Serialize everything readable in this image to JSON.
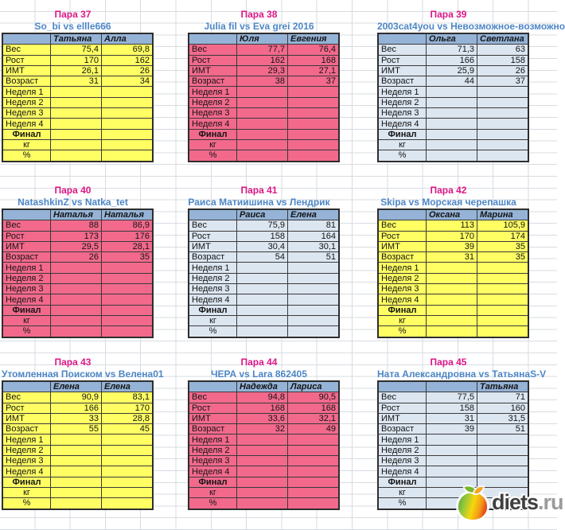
{
  "colors": {
    "yellow": "#FFFF63",
    "pink": "#F2698C",
    "blue": "#DCE6F1",
    "header": "#95B3D7",
    "title": "#DB1786",
    "subtitle": "#4C86C6",
    "gridline": "#D7DCE2"
  },
  "table_row_labels": [
    "Вес",
    "Рост",
    "ИМТ",
    "Возраст",
    "Неделя 1",
    "Неделя 2",
    "Неделя 3",
    "Неделя 4",
    "Финал",
    "кг",
    "%"
  ],
  "pairs": [
    {
      "title": "Пара 37",
      "matchup": "So_bi vs ellle666",
      "theme": "yellow",
      "players": [
        "Татьяна",
        "Алла"
      ],
      "stats": [
        [
          "75,4",
          "69,8"
        ],
        [
          "170",
          "162"
        ],
        [
          "26,1",
          "26"
        ],
        [
          "31",
          "34"
        ]
      ]
    },
    {
      "title": "Пара 38",
      "matchup": "Julia fil vs Eva grei 2016",
      "theme": "pink",
      "players": [
        "Юля",
        "Евгения"
      ],
      "stats": [
        [
          "77,7",
          "76,4"
        ],
        [
          "162",
          "168"
        ],
        [
          "29,3",
          "27,1"
        ],
        [
          "38",
          "37"
        ]
      ]
    },
    {
      "title": "Пара 39",
      "matchup": "2003cat4you vs Невозможное-возможно",
      "theme": "blue",
      "players": [
        "Ольга",
        "Светлана"
      ],
      "stats": [
        [
          "71,3",
          "63"
        ],
        [
          "166",
          "158"
        ],
        [
          "25,9",
          "26"
        ],
        [
          "44",
          "37"
        ]
      ]
    },
    {
      "title": "Пара 40",
      "matchup": "NatashkinZ vs Natka_tet",
      "theme": "pink",
      "players": [
        "Наталья",
        "Наталья"
      ],
      "stats": [
        [
          "88",
          "86,9"
        ],
        [
          "173",
          "176"
        ],
        [
          "29,5",
          "28,1"
        ],
        [
          "26",
          "35"
        ]
      ]
    },
    {
      "title": "Пара 41",
      "matchup": "Раиса Матиишина vs Лендрик",
      "theme": "blue",
      "players": [
        "Раиса",
        "Елена"
      ],
      "stats": [
        [
          "75,9",
          "81"
        ],
        [
          "158",
          "164"
        ],
        [
          "30,4",
          "30,1"
        ],
        [
          "54",
          "51"
        ]
      ]
    },
    {
      "title": "Пара 42",
      "matchup": "Skipa vs Морская черепашка",
      "theme": "yellow",
      "players": [
        "Оксана",
        "Марина"
      ],
      "stats": [
        [
          "113",
          "105,9"
        ],
        [
          "170",
          "174"
        ],
        [
          "39",
          "35"
        ],
        [
          "31",
          "35"
        ]
      ]
    },
    {
      "title": "Пара 43",
      "matchup": "Утомленная Поиском vs Велена01",
      "theme": "yellow",
      "players": [
        "Елена",
        "Елена"
      ],
      "stats": [
        [
          "90,9",
          "83,1"
        ],
        [
          "166",
          "170"
        ],
        [
          "33",
          "28,8"
        ],
        [
          "55",
          "45"
        ]
      ]
    },
    {
      "title": "Пара 44",
      "matchup": "ЧЕРА vs Lara 862405",
      "theme": "pink",
      "players": [
        "Надежда",
        "Лариса"
      ],
      "stats": [
        [
          "94,8",
          "90,5"
        ],
        [
          "168",
          "168"
        ],
        [
          "33,6",
          "32,1"
        ],
        [
          "32",
          "49"
        ]
      ]
    },
    {
      "title": "Пара 45",
      "matchup": "Ната Александровна vs ТатьянаS-V",
      "theme": "blue",
      "players": [
        "",
        "Татьяна"
      ],
      "stats": [
        [
          "77,5",
          "71"
        ],
        [
          "158",
          "160"
        ],
        [
          "31",
          "31,5"
        ],
        [
          "39",
          "51"
        ]
      ]
    }
  ],
  "watermark": {
    "brand": "diets",
    "tld": ".ru",
    "icon": "apple-logo-icon"
  }
}
